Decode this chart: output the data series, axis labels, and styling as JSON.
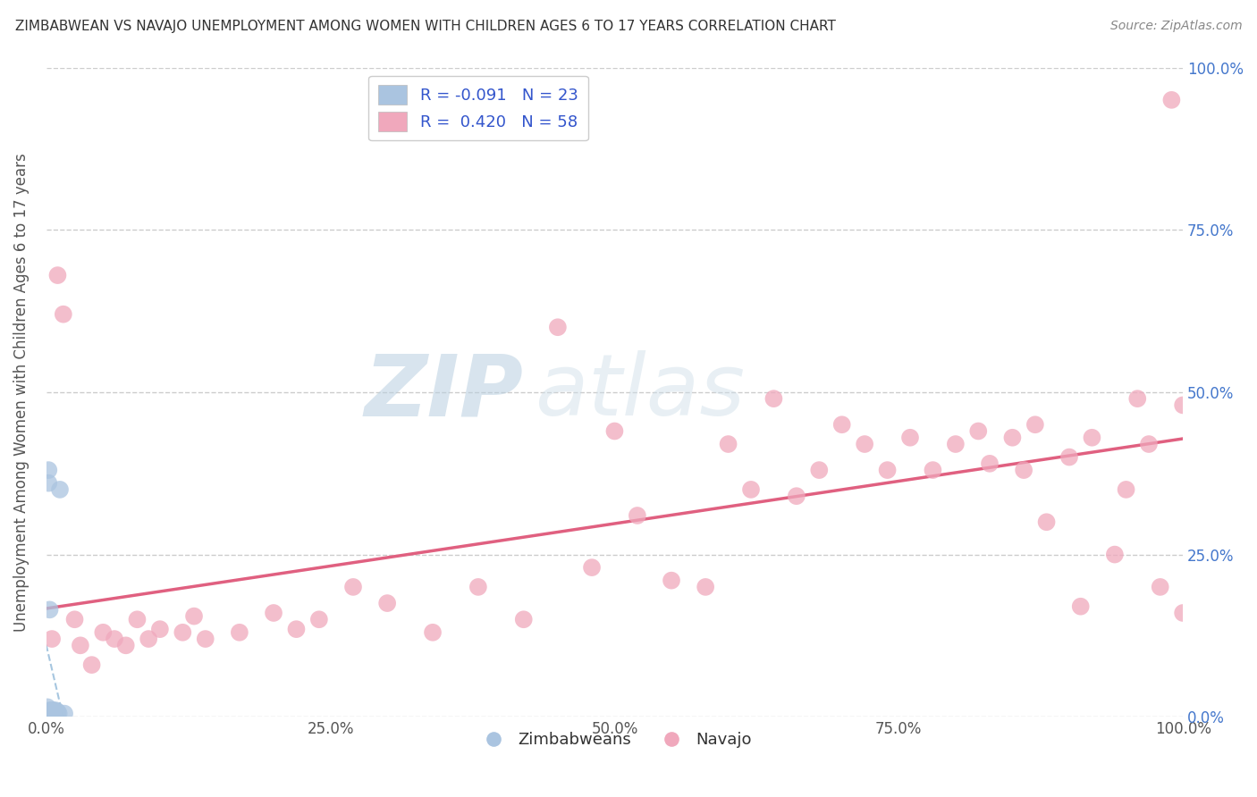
{
  "title": "ZIMBABWEAN VS NAVAJO UNEMPLOYMENT AMONG WOMEN WITH CHILDREN AGES 6 TO 17 YEARS CORRELATION CHART",
  "source": "Source: ZipAtlas.com",
  "ylabel": "Unemployment Among Women with Children Ages 6 to 17 years",
  "watermark_ZIP": "ZIP",
  "watermark_atlas": "atlas",
  "legend_labels": [
    "Zimbabweans",
    "Navajo"
  ],
  "legend_r": [
    -0.091,
    0.42
  ],
  "legend_n": [
    23,
    58
  ],
  "blue_color": "#aac4e0",
  "pink_color": "#f0a8bc",
  "blue_line_color": "#90b8d8",
  "pink_line_color": "#e06080",
  "xlim": [
    0,
    1
  ],
  "ylim": [
    0,
    1
  ],
  "xtick_labels": [
    "0.0%",
    "25.0%",
    "50.0%",
    "75.0%",
    "100.0%"
  ],
  "xtick_vals": [
    0,
    0.25,
    0.5,
    0.75,
    1.0
  ],
  "ytick_labels": [
    "0.0%",
    "25.0%",
    "50.0%",
    "75.0%",
    "100.0%"
  ],
  "ytick_vals": [
    0,
    0.25,
    0.5,
    0.75,
    1.0
  ],
  "zimbabwe_x": [
    0.001,
    0.002,
    0.002,
    0.003,
    0.003,
    0.004,
    0.004,
    0.005,
    0.005,
    0.005,
    0.006,
    0.006,
    0.007,
    0.007,
    0.008,
    0.008,
    0.009,
    0.009,
    0.01,
    0.01,
    0.011,
    0.012,
    0.016
  ],
  "zimbabwe_y": [
    0.015,
    0.36,
    0.38,
    0.165,
    0.01,
    0.005,
    0.008,
    0.01,
    0.008,
    0.005,
    0.008,
    0.01,
    0.005,
    0.008,
    0.005,
    0.01,
    0.005,
    0.008,
    0.005,
    0.008,
    0.005,
    0.35,
    0.005
  ],
  "navajo_x": [
    0.005,
    0.01,
    0.015,
    0.025,
    0.03,
    0.04,
    0.05,
    0.06,
    0.07,
    0.08,
    0.09,
    0.1,
    0.12,
    0.13,
    0.14,
    0.17,
    0.2,
    0.22,
    0.24,
    0.27,
    0.3,
    0.34,
    0.38,
    0.42,
    0.45,
    0.48,
    0.5,
    0.52,
    0.55,
    0.58,
    0.6,
    0.62,
    0.64,
    0.66,
    0.68,
    0.7,
    0.72,
    0.74,
    0.76,
    0.78,
    0.8,
    0.82,
    0.83,
    0.85,
    0.86,
    0.87,
    0.88,
    0.9,
    0.91,
    0.92,
    0.94,
    0.95,
    0.96,
    0.97,
    0.98,
    0.99,
    1.0,
    1.0
  ],
  "navajo_y": [
    0.12,
    0.68,
    0.62,
    0.15,
    0.11,
    0.08,
    0.13,
    0.12,
    0.11,
    0.15,
    0.12,
    0.135,
    0.13,
    0.155,
    0.12,
    0.13,
    0.16,
    0.135,
    0.15,
    0.2,
    0.175,
    0.13,
    0.2,
    0.15,
    0.6,
    0.23,
    0.44,
    0.31,
    0.21,
    0.2,
    0.42,
    0.35,
    0.49,
    0.34,
    0.38,
    0.45,
    0.42,
    0.38,
    0.43,
    0.38,
    0.42,
    0.44,
    0.39,
    0.43,
    0.38,
    0.45,
    0.3,
    0.4,
    0.17,
    0.43,
    0.25,
    0.35,
    0.49,
    0.42,
    0.2,
    0.95,
    0.48,
    0.16
  ]
}
